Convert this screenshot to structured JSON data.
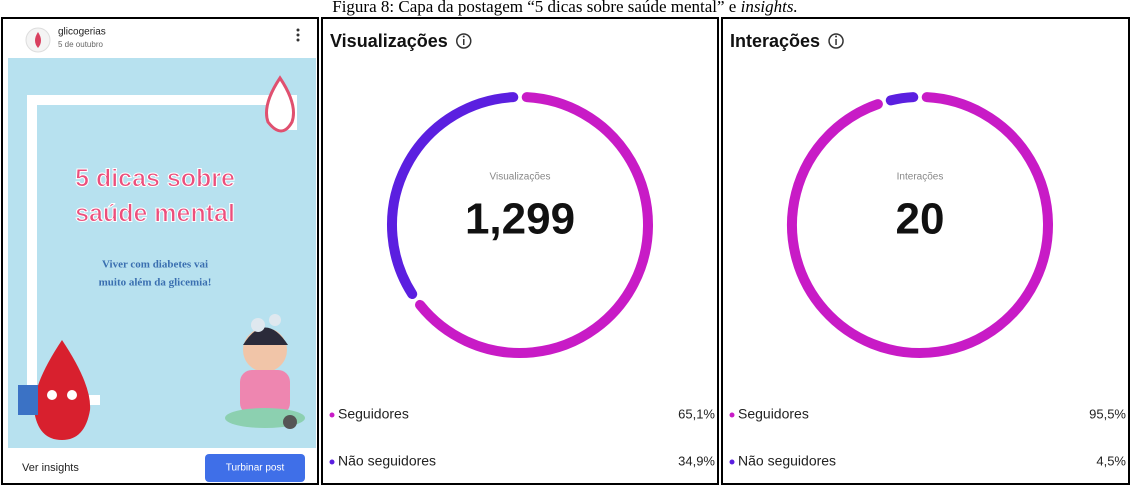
{
  "caption": {
    "text": "Figura 8: Capa da postagem “5 dicas sobre saúde mental” e ",
    "emphasis": "insights."
  },
  "post": {
    "account": "glicogerias",
    "date": "5 de outubro",
    "headline_1": "5 dicas sobre",
    "headline_2": "saúde mental",
    "subtitle_1": "Viver com diabetes vai",
    "subtitle_2": "muito além da glicemia!",
    "insights_link": "Ver insights",
    "boost_button": "Turbinar post"
  },
  "panels": [
    {
      "title": "Visualizações",
      "center_label": "Visualizações",
      "total": "1,299",
      "segments": [
        {
          "name": "Seguidores",
          "value": 65.1,
          "label": "65,1%",
          "color": "#c81bc6"
        },
        {
          "name": "Não seguidores",
          "value": 34.9,
          "label": "34,9%",
          "color": "#5b1fe0"
        }
      ]
    },
    {
      "title": "Interações",
      "center_label": "Interações",
      "total": "20",
      "segments": [
        {
          "name": "Seguidores",
          "value": 95.5,
          "label": "95,5%",
          "color": "#c81bc6"
        },
        {
          "name": "Não seguidores",
          "value": 4.5,
          "label": "4,5%",
          "color": "#5b1fe0"
        }
      ]
    }
  ]
}
